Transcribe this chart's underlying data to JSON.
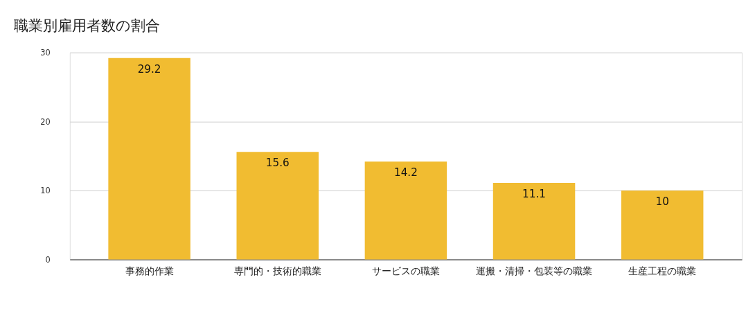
{
  "chart_data": {
    "type": "bar",
    "title": "職業別雇用者数の割合",
    "categories": [
      "事務的作業",
      "専門的・技術的職業",
      "サービスの職業",
      "運搬・清掃・包装等の職業",
      "生産工程の職業"
    ],
    "values": [
      29.2,
      15.6,
      14.2,
      11.1,
      10
    ],
    "color": "#f1bc31",
    "ylim": [
      0,
      30
    ],
    "yticks": [
      0,
      10,
      20,
      30
    ],
    "grid": "y",
    "data_labels": true
  }
}
